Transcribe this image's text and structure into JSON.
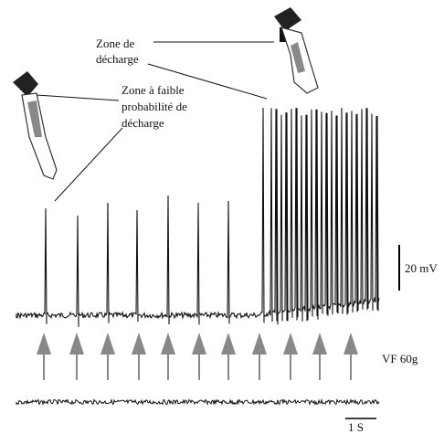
{
  "labels": {
    "zone_decharge": [
      "Zone de",
      "décharge"
    ],
    "zone_faible": [
      "Zone à faible",
      "probabilité de",
      "décharge"
    ],
    "scale_voltage": "20 mV",
    "stimulus": "VF 60g",
    "scale_time": "1 S"
  }
}
